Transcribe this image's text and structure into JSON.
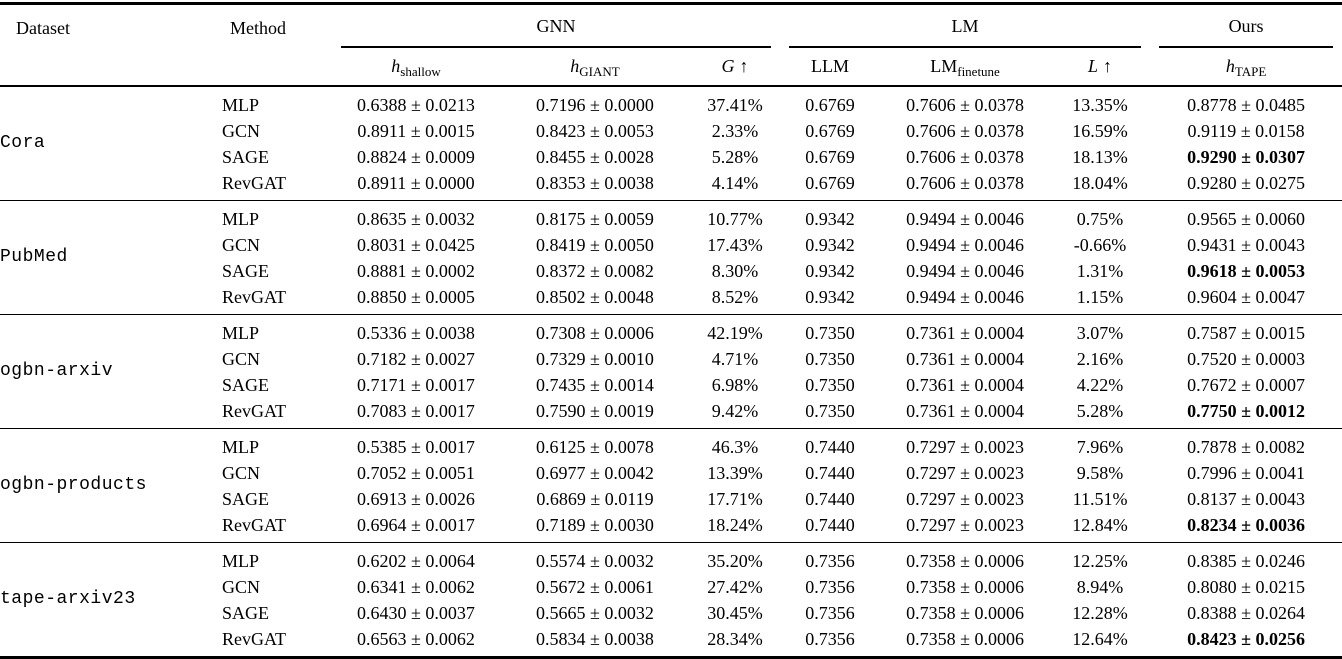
{
  "table": {
    "header": {
      "dataset_label": "Dataset",
      "method_label": "Method",
      "groups": [
        {
          "label": "GNN"
        },
        {
          "label": "LM"
        },
        {
          "label": "Ours"
        }
      ],
      "columns": [
        {
          "base": "h",
          "sub": "shallow"
        },
        {
          "base": "h",
          "sub": "GIANT"
        },
        {
          "base": "G",
          "arrow": "↑"
        },
        {
          "base": "LLM"
        },
        {
          "base": "LM",
          "sub": "finetune"
        },
        {
          "base": "L",
          "arrow": "↑"
        },
        {
          "base": "h",
          "sub": "TAPE"
        }
      ]
    },
    "blocks": [
      {
        "dataset": "Cora",
        "rows": [
          {
            "method": "MLP",
            "cells": [
              "0.6388 ± 0.0213",
              "0.7196 ± 0.0000",
              "37.41%",
              "0.6769",
              "0.7606 ± 0.0378",
              "13.35%",
              "0.8778 ± 0.0485"
            ]
          },
          {
            "method": "GCN",
            "cells": [
              "0.8911 ± 0.0015",
              "0.8423 ± 0.0053",
              "2.33%",
              "0.6769",
              "0.7606 ± 0.0378",
              "16.59%",
              "0.9119 ± 0.0158"
            ]
          },
          {
            "method": "SAGE",
            "best": true,
            "cells": [
              "0.8824 ± 0.0009",
              "0.8455 ± 0.0028",
              "5.28%",
              "0.6769",
              "0.7606 ± 0.0378",
              "18.13%",
              "0.9290 ± 0.0307"
            ]
          },
          {
            "method": "RevGAT",
            "cells": [
              "0.8911 ± 0.0000",
              "0.8353 ± 0.0038",
              "4.14%",
              "0.6769",
              "0.7606 ± 0.0378",
              "18.04%",
              "0.9280 ± 0.0275"
            ]
          }
        ]
      },
      {
        "dataset": "PubMed",
        "rows": [
          {
            "method": "MLP",
            "cells": [
              "0.8635 ± 0.0032",
              "0.8175 ± 0.0059",
              "10.77%",
              "0.9342",
              "0.9494 ± 0.0046",
              "0.75%",
              "0.9565 ± 0.0060"
            ]
          },
          {
            "method": "GCN",
            "cells": [
              "0.8031 ± 0.0425",
              "0.8419 ± 0.0050",
              "17.43%",
              "0.9342",
              "0.9494 ± 0.0046",
              "-0.66%",
              "0.9431 ± 0.0043"
            ]
          },
          {
            "method": "SAGE",
            "best": true,
            "cells": [
              "0.8881 ± 0.0002",
              "0.8372 ± 0.0082",
              "8.30%",
              "0.9342",
              "0.9494 ± 0.0046",
              "1.31%",
              "0.9618 ± 0.0053"
            ]
          },
          {
            "method": "RevGAT",
            "cells": [
              "0.8850 ± 0.0005",
              "0.8502 ± 0.0048",
              "8.52%",
              "0.9342",
              "0.9494 ± 0.0046",
              "1.15%",
              "0.9604 ± 0.0047"
            ]
          }
        ]
      },
      {
        "dataset": "ogbn-arxiv",
        "rows": [
          {
            "method": "MLP",
            "cells": [
              "0.5336 ± 0.0038",
              "0.7308 ± 0.0006",
              "42.19%",
              "0.7350",
              "0.7361 ± 0.0004",
              "3.07%",
              "0.7587 ± 0.0015"
            ]
          },
          {
            "method": "GCN",
            "cells": [
              "0.7182 ± 0.0027",
              "0.7329 ± 0.0010",
              "4.71%",
              "0.7350",
              "0.7361 ± 0.0004",
              "2.16%",
              "0.7520 ± 0.0003"
            ]
          },
          {
            "method": "SAGE",
            "cells": [
              "0.7171 ± 0.0017",
              "0.7435 ± 0.0014",
              "6.98%",
              "0.7350",
              "0.7361 ± 0.0004",
              "4.22%",
              "0.7672 ± 0.0007"
            ]
          },
          {
            "method": "RevGAT",
            "best": true,
            "cells": [
              "0.7083 ± 0.0017",
              "0.7590 ± 0.0019",
              "9.42%",
              "0.7350",
              "0.7361 ± 0.0004",
              "5.28%",
              "0.7750 ± 0.0012"
            ]
          }
        ]
      },
      {
        "dataset": "ogbn-products",
        "rows": [
          {
            "method": "MLP",
            "cells": [
              "0.5385 ± 0.0017",
              "0.6125 ± 0.0078",
              "46.3%",
              "0.7440",
              "0.7297 ± 0.0023",
              "7.96%",
              "0.7878 ± 0.0082"
            ]
          },
          {
            "method": "GCN",
            "cells": [
              "0.7052 ± 0.0051",
              "0.6977 ± 0.0042",
              "13.39%",
              "0.7440",
              "0.7297 ± 0.0023",
              "9.58%",
              "0.7996 ± 0.0041"
            ]
          },
          {
            "method": "SAGE",
            "cells": [
              "0.6913 ± 0.0026",
              "0.6869 ± 0.0119",
              "17.71%",
              "0.7440",
              "0.7297 ± 0.0023",
              "11.51%",
              "0.8137 ± 0.0043"
            ]
          },
          {
            "method": "RevGAT",
            "best": true,
            "cells": [
              "0.6964 ± 0.0017",
              "0.7189 ± 0.0030",
              "18.24%",
              "0.7440",
              "0.7297 ± 0.0023",
              "12.84%",
              "0.8234 ± 0.0036"
            ]
          }
        ]
      },
      {
        "dataset": "tape-arxiv23",
        "rows": [
          {
            "method": "MLP",
            "cells": [
              "0.6202 ± 0.0064",
              "0.5574 ± 0.0032",
              "35.20%",
              "0.7356",
              "0.7358 ± 0.0006",
              "12.25%",
              "0.8385 ± 0.0246"
            ]
          },
          {
            "method": "GCN",
            "cells": [
              "0.6341 ± 0.0062",
              "0.5672 ± 0.0061",
              "27.42%",
              "0.7356",
              "0.7358 ± 0.0006",
              "8.94%",
              "0.8080 ± 0.0215"
            ]
          },
          {
            "method": "SAGE",
            "cells": [
              "0.6430 ± 0.0037",
              "0.5665 ± 0.0032",
              "30.45%",
              "0.7356",
              "0.7358 ± 0.0006",
              "12.28%",
              "0.8388 ± 0.0264"
            ]
          },
          {
            "method": "RevGAT",
            "best": true,
            "cells": [
              "0.6563 ± 0.0062",
              "0.5834 ± 0.0038",
              "28.34%",
              "0.7356",
              "0.7358 ± 0.0006",
              "12.64%",
              "0.8423 ± 0.0256"
            ]
          }
        ]
      }
    ]
  }
}
